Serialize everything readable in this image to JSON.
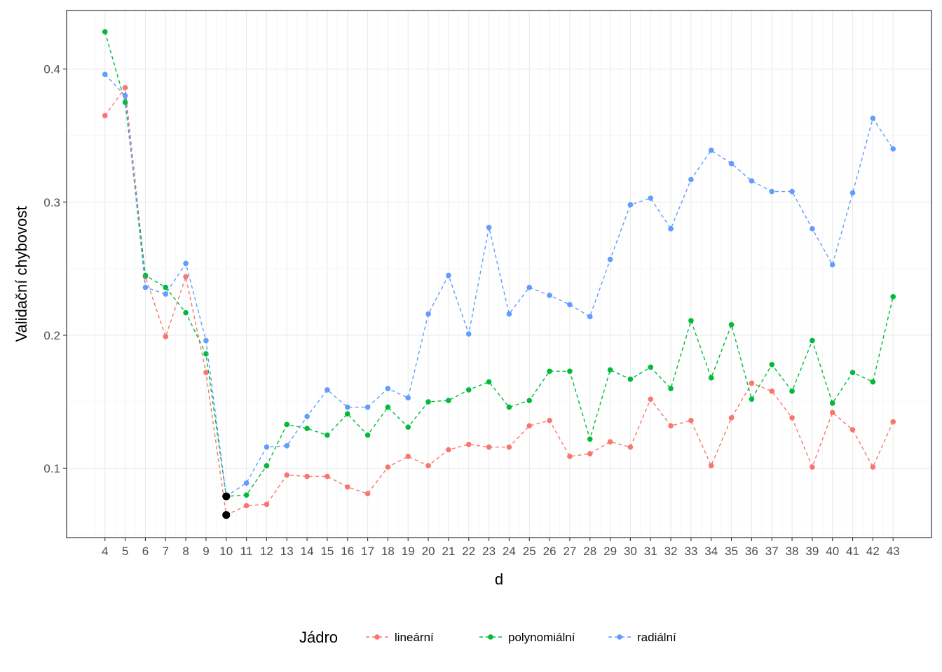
{
  "chart_data": {
    "type": "line",
    "title": "",
    "xlabel": "d",
    "ylabel": "Validační chybovost",
    "x": [
      4,
      5,
      6,
      7,
      8,
      9,
      10,
      11,
      12,
      13,
      14,
      15,
      16,
      17,
      18,
      19,
      20,
      21,
      22,
      23,
      24,
      25,
      26,
      27,
      28,
      29,
      30,
      31,
      32,
      33,
      34,
      35,
      36,
      37,
      38,
      39,
      40,
      41,
      42,
      43
    ],
    "xlim": [
      2.1,
      44.9
    ],
    "ylim": [
      0.048,
      0.444
    ],
    "yticks": [
      0.1,
      0.2,
      0.3,
      0.4
    ],
    "ytick_labels": [
      "0.1",
      "0.2",
      "0.3",
      "0.4"
    ],
    "grid": true,
    "legend": {
      "title": "Jádro",
      "position": "bottom"
    },
    "series": [
      {
        "name": "lineární",
        "color": "#F8766D",
        "values": [
          0.365,
          0.386,
          0.244,
          0.199,
          0.244,
          0.172,
          0.065,
          0.072,
          0.073,
          0.095,
          0.094,
          0.094,
          0.086,
          0.081,
          0.101,
          0.109,
          0.102,
          0.114,
          0.118,
          0.116,
          0.116,
          0.132,
          0.136,
          0.109,
          0.111,
          0.12,
          0.116,
          0.152,
          0.132,
          0.136,
          0.102,
          0.138,
          0.164,
          0.158,
          0.138,
          0.101,
          0.142,
          0.129,
          0.101,
          0.135
        ]
      },
      {
        "name": "polynomiální",
        "color": "#00BA38",
        "values": [
          0.428,
          0.375,
          0.245,
          0.236,
          0.217,
          0.186,
          0.079,
          0.08,
          0.102,
          0.133,
          0.13,
          0.125,
          0.141,
          0.125,
          0.146,
          0.131,
          0.15,
          0.151,
          0.159,
          0.165,
          0.146,
          0.151,
          0.173,
          0.173,
          0.122,
          0.174,
          0.167,
          0.176,
          0.16,
          0.211,
          0.168,
          0.208,
          0.152,
          0.178,
          0.158,
          0.196,
          0.149,
          0.172,
          0.165,
          0.229
        ]
      },
      {
        "name": "radiální",
        "color": "#619CFF",
        "values": [
          0.396,
          0.38,
          0.236,
          0.231,
          0.254,
          0.196,
          0.079,
          0.089,
          0.116,
          0.117,
          0.139,
          0.159,
          0.146,
          0.146,
          0.16,
          0.153,
          0.216,
          0.245,
          0.201,
          0.281,
          0.216,
          0.236,
          0.23,
          0.223,
          0.214,
          0.257,
          0.298,
          0.303,
          0.28,
          0.317,
          0.339,
          0.329,
          0.316,
          0.308,
          0.308,
          0.28,
          0.253,
          0.307,
          0.363,
          0.34
        ]
      }
    ],
    "highlighted_points": {
      "color": "#000000",
      "x": [
        10,
        10
      ],
      "y": [
        0.065,
        0.079
      ]
    }
  }
}
